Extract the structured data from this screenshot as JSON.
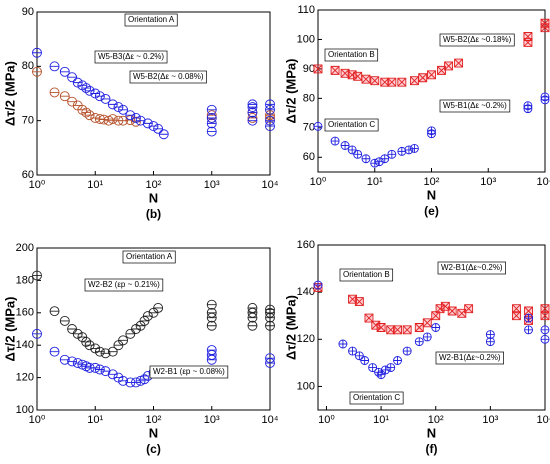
{
  "chart_data": [
    {
      "type": "scatter",
      "panel": "(b)",
      "x_label": "N",
      "y_label": "Δτ/2 (MPa)",
      "log_x": true,
      "marker": "circle-bar",
      "xlim": [
        1,
        10000
      ],
      "xticks": [
        {
          "value": 1,
          "label": "10⁰"
        },
        {
          "value": 10,
          "label": "10¹"
        },
        {
          "value": 100,
          "label": "10²"
        },
        {
          "value": 1000,
          "label": "10³"
        },
        {
          "value": 10000,
          "label": "10⁴"
        }
      ],
      "ylim": [
        60,
        90
      ],
      "yticks": [
        60,
        70,
        80,
        90
      ],
      "annotations": [
        "Orientation A",
        "W5-B3(Δε ~ 0.2%)",
        "W5-B2(Δε ~ 0.08%)"
      ],
      "series": [
        {
          "color": "#b5502a",
          "x": [
            1,
            2,
            3,
            4,
            5,
            6,
            7,
            8,
            10,
            12,
            14,
            17,
            20,
            25,
            30,
            40,
            50,
            1000,
            1000,
            5000,
            5000,
            10000,
            10000
          ],
          "values": [
            79,
            75.2,
            74.5,
            73.5,
            72.8,
            72,
            71.5,
            71,
            70.5,
            70.3,
            70.2,
            70,
            70.3,
            70,
            70,
            70.1,
            69.8,
            70.5,
            71,
            70.5,
            71.5,
            70.5,
            71
          ]
        },
        {
          "color": "#2020e0",
          "x": [
            1,
            2,
            3,
            4,
            5,
            6,
            7,
            8,
            10,
            12,
            15,
            20,
            25,
            30,
            40,
            50,
            60,
            80,
            100,
            120,
            150,
            1000,
            1000,
            1000,
            1000,
            5000,
            5000,
            5000,
            5000,
            10000,
            10000,
            10000,
            10000
          ],
          "values": [
            82.5,
            80,
            79,
            78,
            77,
            76.5,
            76,
            75.5,
            75,
            74.5,
            74,
            73,
            72.5,
            72,
            71,
            70.5,
            70,
            69.5,
            69,
            68.5,
            67.5,
            68,
            69.5,
            70.5,
            72,
            70,
            71.5,
            72.5,
            73,
            69,
            70,
            72,
            73
          ]
        }
      ]
    },
    {
      "type": "scatter",
      "panel": "(e)",
      "x_label": "N",
      "y_label": "Δτ/2 (MPa)",
      "log_x": true,
      "marker": "cross",
      "xlim": [
        1,
        10000
      ],
      "xticks": [
        {
          "value": 1,
          "label": "10⁰"
        },
        {
          "value": 10,
          "label": "10¹"
        },
        {
          "value": 100,
          "label": "10²"
        },
        {
          "value": 1000,
          "label": "10³"
        },
        {
          "value": 10000,
          "label": "10⁴"
        }
      ],
      "ylim": [
        55,
        110
      ],
      "yticks": [
        60,
        70,
        80,
        90,
        100,
        110
      ],
      "annotations": [
        "Orientation B",
        "W5-B2(Δε ~0.18%)",
        "W5-B1(Δε ~0.2%)",
        "Orientation C"
      ],
      "series": [
        {
          "color": "#e02020",
          "x": [
            1,
            2,
            3,
            4,
            5,
            7,
            10,
            15,
            20,
            30,
            50,
            70,
            100,
            150,
            200,
            300,
            5000,
            5000,
            10000,
            10000
          ],
          "values": [
            90,
            89.5,
            88.5,
            88,
            87.5,
            86.5,
            86,
            85.5,
            85.5,
            85.5,
            86,
            87,
            88,
            89.5,
            91,
            92,
            99,
            101,
            104,
            105.5
          ]
        },
        {
          "color": "#2020e0",
          "x": [
            1,
            2,
            3,
            4,
            5,
            7,
            10,
            12,
            15,
            20,
            30,
            40,
            50,
            100,
            100,
            5000,
            5000,
            10000,
            10000
          ],
          "values": [
            70.5,
            65.5,
            64,
            62.5,
            61,
            59.5,
            58,
            58.5,
            59.5,
            61,
            62,
            62.5,
            63,
            68,
            69,
            76.5,
            77.5,
            79.5,
            80.5
          ]
        }
      ]
    },
    {
      "type": "scatter",
      "panel": "(c)",
      "x_label": "N",
      "y_label": "Δτ/2 (MPa)",
      "log_x": true,
      "marker": "circle-bar",
      "xlim": [
        1,
        10000
      ],
      "xticks": [
        {
          "value": 1,
          "label": "10⁰"
        },
        {
          "value": 10,
          "label": "10¹"
        },
        {
          "value": 100,
          "label": "10²"
        },
        {
          "value": 1000,
          "label": "10³"
        },
        {
          "value": 10000,
          "label": "10⁴"
        }
      ],
      "ylim": [
        100,
        200
      ],
      "yticks": [
        100,
        120,
        140,
        160,
        180,
        200
      ],
      "annotations": [
        "Orientation A",
        "W2-B2 (εp ~ 0.21%)",
        "W2-B1 (εp ~ 0.08%)"
      ],
      "series": [
        {
          "color": "#222222",
          "x": [
            1,
            2,
            3,
            4,
            5,
            6,
            7,
            8,
            10,
            12,
            15,
            20,
            25,
            30,
            40,
            50,
            60,
            70,
            80,
            100,
            120,
            1000,
            1000,
            1000,
            1000,
            5000,
            5000,
            5000,
            5000,
            10000,
            10000,
            10000,
            10000
          ],
          "values": [
            183,
            161,
            155,
            150,
            147,
            145,
            142,
            140,
            138,
            136,
            135,
            136,
            140,
            143,
            147,
            150,
            152,
            155,
            158,
            160,
            163,
            152,
            157,
            160,
            165,
            152,
            157,
            160,
            163,
            152,
            157,
            160,
            162
          ]
        },
        {
          "color": "#2020e0",
          "x": [
            1,
            2,
            3,
            4,
            5,
            6,
            7,
            8,
            10,
            12,
            15,
            20,
            25,
            30,
            40,
            50,
            60,
            70,
            80,
            100,
            1000,
            1000,
            1000,
            10000,
            10000
          ],
          "values": [
            147,
            136,
            131,
            130,
            129,
            128,
            127,
            126,
            126,
            125,
            124,
            122,
            120,
            118,
            117,
            117,
            118,
            119,
            121,
            123,
            131,
            134,
            137,
            129,
            132
          ]
        }
      ]
    },
    {
      "type": "scatter",
      "panel": "(f)",
      "x_label": "N",
      "y_label": "Δτ/2 (MPa)",
      "log_x": true,
      "marker": "cross",
      "xlim": [
        0.7,
        10000
      ],
      "xticks": [
        {
          "value": 1,
          "label": "10⁰"
        },
        {
          "value": 10,
          "label": "10¹"
        },
        {
          "value": 100,
          "label": "10²"
        },
        {
          "value": 1000,
          "label": "10³"
        },
        {
          "value": 10000,
          "label": "10⁴"
        }
      ],
      "ylim": [
        90,
        160
      ],
      "yticks": [
        100,
        120,
        140,
        160
      ],
      "annotations": [
        "Orientation B",
        "W2-B1(Δε~0.2%)",
        "W2-B1(Δε~0.2%)",
        "Orientation C"
      ],
      "series": [
        {
          "color": "#e02020",
          "x": [
            0.7,
            3,
            4,
            6,
            8,
            10,
            15,
            20,
            30,
            50,
            70,
            100,
            120,
            150,
            200,
            300,
            400,
            3000,
            3000,
            5000,
            5000,
            10000,
            10000
          ],
          "values": [
            142,
            137,
            136,
            129,
            126,
            125,
            124,
            124,
            124,
            125,
            127,
            130,
            133,
            134,
            132,
            131,
            133,
            130,
            133,
            128,
            132,
            130,
            133
          ]
        },
        {
          "color": "#2020e0",
          "x": [
            0.7,
            2,
            3,
            4,
            5,
            7,
            9,
            10,
            12,
            15,
            20,
            30,
            50,
            70,
            100,
            1000,
            1000,
            5000,
            5000,
            10000,
            10000
          ],
          "values": [
            143,
            118,
            115,
            113,
            111,
            108,
            106,
            105,
            107,
            108,
            111,
            115,
            119,
            121,
            125,
            119,
            122,
            124,
            129,
            120,
            124
          ]
        }
      ]
    }
  ]
}
